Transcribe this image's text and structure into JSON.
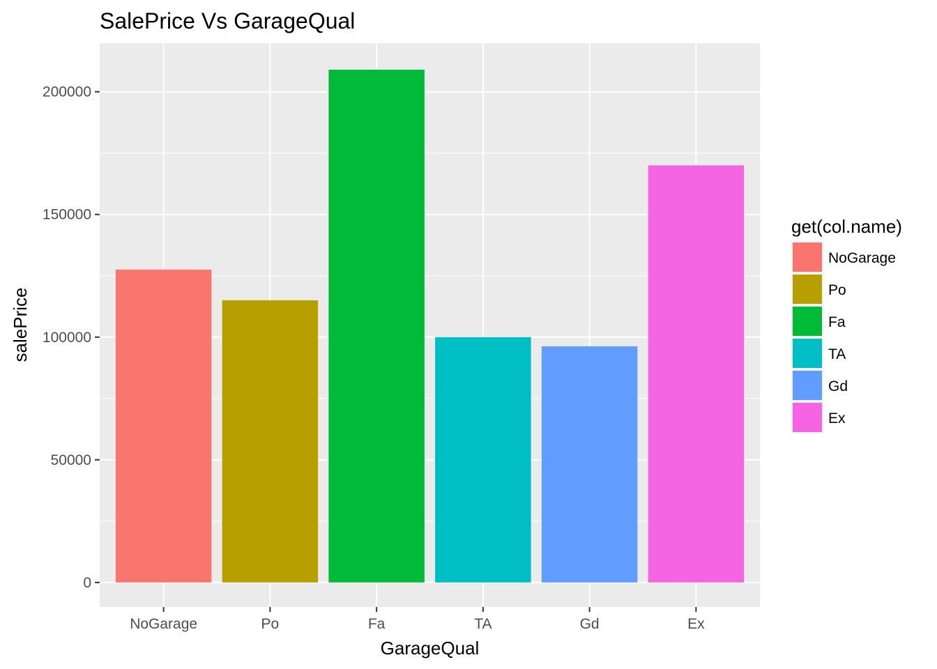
{
  "chart_data": {
    "type": "bar",
    "title": "SalePrice Vs GarageQual",
    "xlabel": "GarageQual",
    "ylabel": "salePrice",
    "categories": [
      "NoGarage",
      "Po",
      "Fa",
      "TA",
      "Gd",
      "Ex"
    ],
    "values": [
      127500,
      115000,
      209000,
      100000,
      96250,
      170000
    ],
    "colors": [
      "#F8766D",
      "#B79F00",
      "#00BA38",
      "#00BFC4",
      "#619CFF",
      "#F564E3"
    ],
    "ylim": [
      -10000,
      219800
    ],
    "yticks": [
      0,
      50000,
      100000,
      150000,
      200000
    ],
    "ytick_labels": [
      "0",
      "50000",
      "100000",
      "150000",
      "200000"
    ],
    "grid": true,
    "panel_background": "#EBEBEB",
    "legend": {
      "title": "get(col.name)",
      "position": "right",
      "entries": [
        "NoGarage",
        "Po",
        "Fa",
        "TA",
        "Gd",
        "Ex"
      ]
    }
  }
}
